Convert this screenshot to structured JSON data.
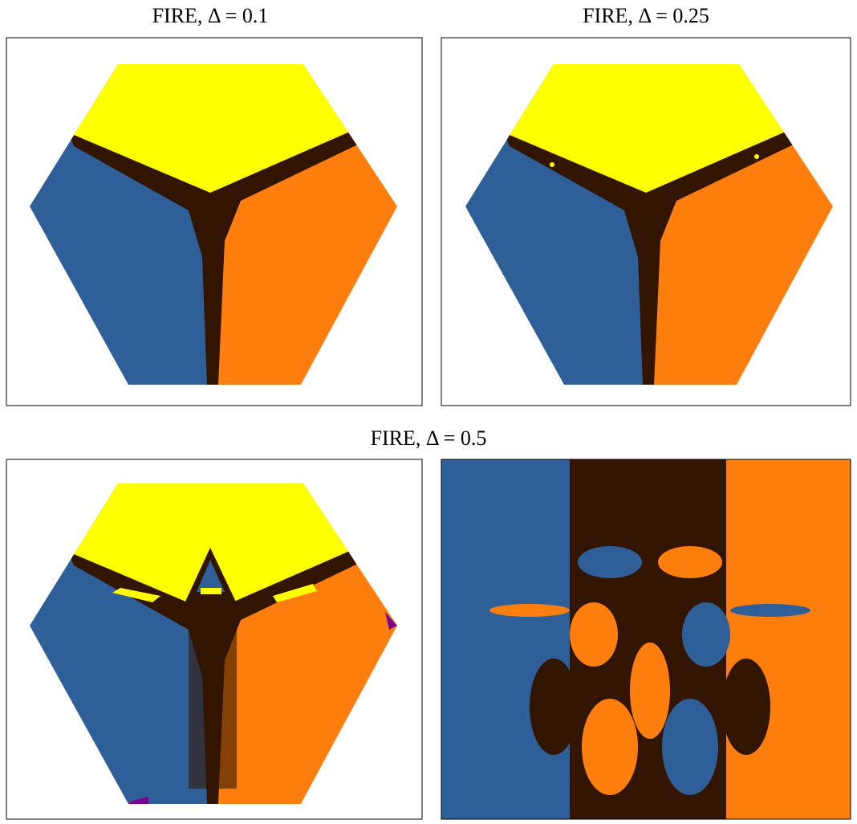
{
  "panels": [
    {
      "title": "FIRE, Δ = 0.1"
    },
    {
      "title": "FIRE, Δ = 0.25"
    },
    {
      "title": "FIRE, Δ = 0.5"
    }
  ]
}
